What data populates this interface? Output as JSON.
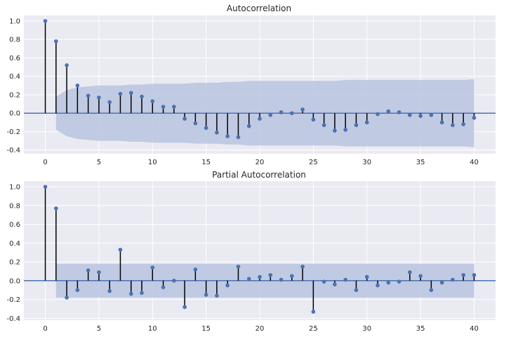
{
  "colors": {
    "panel_bg": "#EAEAF2",
    "grid": "#FFFFFF",
    "stem": "#000000",
    "marker": "#4C72B0",
    "zero_line": "#4C72B0",
    "confidence_band": "#B8C4E0"
  },
  "chart_data": [
    {
      "type": "stem",
      "title": "Autocorrelation",
      "xlabel": "",
      "ylabel": "",
      "xlim": [
        -2,
        42
      ],
      "ylim": [
        -0.44,
        1.06
      ],
      "xticks": [
        0,
        5,
        10,
        15,
        20,
        25,
        30,
        35,
        40
      ],
      "yticks": [
        -0.4,
        -0.2,
        0.0,
        0.2,
        0.4,
        0.6,
        0.8,
        1.0
      ],
      "grid": true,
      "lags": [
        0,
        1,
        2,
        3,
        4,
        5,
        6,
        7,
        8,
        9,
        10,
        11,
        12,
        13,
        14,
        15,
        16,
        17,
        18,
        19,
        20,
        21,
        22,
        23,
        24,
        25,
        26,
        27,
        28,
        29,
        30,
        31,
        32,
        33,
        34,
        35,
        36,
        37,
        38,
        39,
        40
      ],
      "values": [
        1.0,
        0.78,
        0.52,
        0.3,
        0.19,
        0.17,
        0.12,
        0.21,
        0.22,
        0.18,
        0.13,
        0.07,
        0.07,
        -0.06,
        -0.11,
        -0.16,
        -0.21,
        -0.25,
        -0.26,
        -0.14,
        -0.06,
        -0.02,
        0.01,
        0.0,
        0.04,
        -0.07,
        -0.13,
        -0.19,
        -0.18,
        -0.13,
        -0.1,
        -0.01,
        0.02,
        0.01,
        -0.02,
        -0.03,
        -0.02,
        -0.1,
        -0.13,
        -0.12,
        -0.05
      ],
      "confidence_band": {
        "lags": [
          1,
          2,
          3,
          4,
          5,
          6,
          7,
          8,
          9,
          10,
          11,
          12,
          13,
          14,
          15,
          16,
          17,
          18,
          19,
          20,
          21,
          22,
          23,
          24,
          25,
          26,
          27,
          28,
          29,
          30,
          31,
          32,
          33,
          34,
          35,
          36,
          37,
          38,
          39,
          40
        ],
        "upper": [
          0.18,
          0.25,
          0.28,
          0.29,
          0.3,
          0.3,
          0.3,
          0.31,
          0.31,
          0.32,
          0.32,
          0.32,
          0.32,
          0.33,
          0.33,
          0.33,
          0.34,
          0.34,
          0.35,
          0.35,
          0.35,
          0.35,
          0.35,
          0.35,
          0.35,
          0.35,
          0.35,
          0.36,
          0.36,
          0.36,
          0.36,
          0.36,
          0.36,
          0.36,
          0.36,
          0.36,
          0.36,
          0.36,
          0.36,
          0.37
        ]
      }
    },
    {
      "type": "stem",
      "title": "Partial Autocorrelation",
      "xlabel": "",
      "ylabel": "",
      "xlim": [
        -2,
        42
      ],
      "ylim": [
        -0.42,
        1.06
      ],
      "xticks": [
        0,
        5,
        10,
        15,
        20,
        25,
        30,
        35,
        40
      ],
      "yticks": [
        -0.4,
        -0.2,
        0.0,
        0.2,
        0.4,
        0.6,
        0.8,
        1.0
      ],
      "grid": true,
      "lags": [
        0,
        1,
        2,
        3,
        4,
        5,
        6,
        7,
        8,
        9,
        10,
        11,
        12,
        13,
        14,
        15,
        16,
        17,
        18,
        19,
        20,
        21,
        22,
        23,
        24,
        25,
        26,
        27,
        28,
        29,
        30,
        31,
        32,
        33,
        34,
        35,
        36,
        37,
        38,
        39,
        40
      ],
      "values": [
        1.0,
        0.77,
        -0.18,
        -0.1,
        0.11,
        0.09,
        -0.11,
        0.33,
        -0.14,
        -0.13,
        0.14,
        -0.07,
        0.0,
        -0.28,
        0.12,
        -0.15,
        -0.16,
        -0.05,
        0.15,
        0.02,
        0.04,
        0.06,
        0.01,
        0.05,
        0.15,
        -0.33,
        -0.01,
        -0.04,
        0.01,
        -0.1,
        0.04,
        -0.05,
        -0.02,
        -0.01,
        0.09,
        0.05,
        -0.1,
        -0.02,
        0.01,
        0.06,
        0.06
      ],
      "confidence_band": {
        "lags": [
          1,
          40
        ],
        "upper": [
          0.18,
          0.18
        ]
      }
    }
  ]
}
